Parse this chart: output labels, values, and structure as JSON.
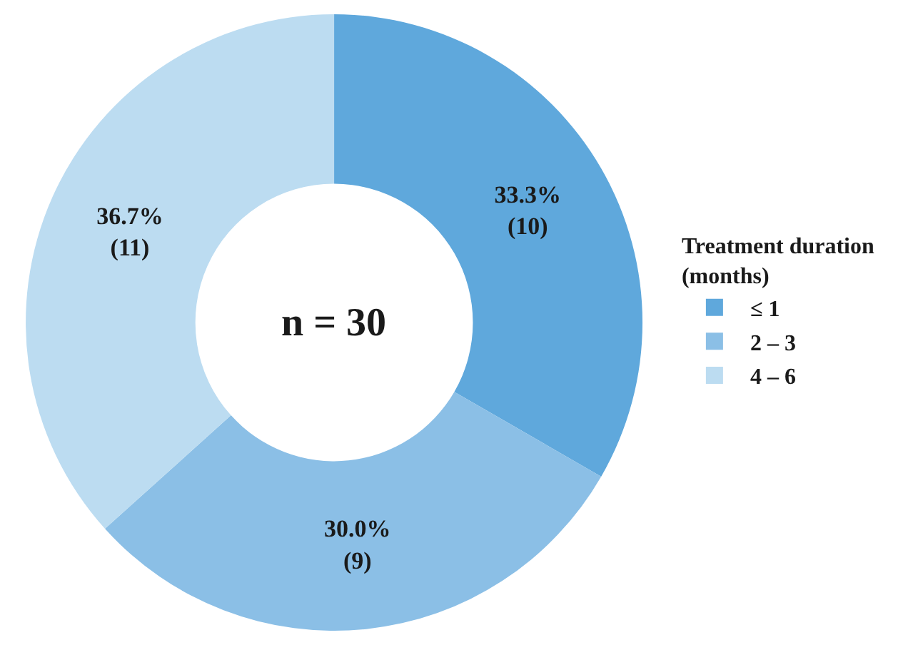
{
  "chart_data": {
    "type": "donut",
    "categories": [
      "≤ 1",
      "2 – 3",
      "4 – 6"
    ],
    "values": [
      10,
      9,
      11
    ],
    "value_labels": [
      "33.3%\n(10)",
      "30.0%\n(9)",
      "36.7%\n(11)"
    ],
    "colors": [
      "#5fa8dc",
      "#8bbfe6",
      "#bcdcf1"
    ],
    "legend_title": "Treatment duration\n(months)",
    "legend": "right",
    "annotations": [
      "n = 30"
    ]
  }
}
